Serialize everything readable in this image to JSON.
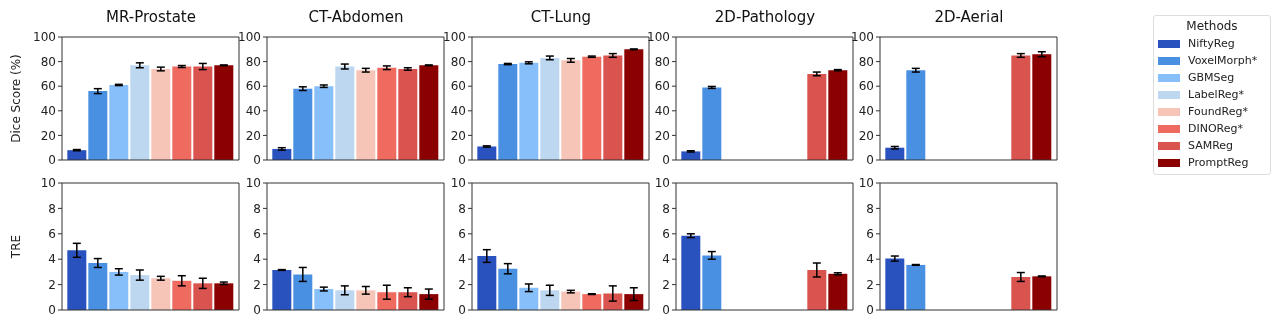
{
  "chart_data": [
    {
      "type": "bar",
      "title": "MR-Prostate",
      "ylabel": "Dice Score (%)",
      "categories": [
        null
      ],
      "ylim": [
        0,
        100
      ],
      "yticks": [
        0,
        20,
        40,
        60,
        80,
        100
      ],
      "grid": false,
      "legend": false,
      "series": [
        {
          "color": "#2a52be",
          "values": [
            8
          ],
          "errors": [
            0.5
          ]
        },
        {
          "color": "#4a90e2",
          "values": [
            56
          ],
          "errors": [
            2
          ]
        },
        {
          "color": "#87bffa",
          "values": [
            61
          ],
          "errors": [
            0.5
          ]
        },
        {
          "color": "#bcd7ef",
          "values": [
            77
          ],
          "errors": [
            2
          ]
        },
        {
          "color": "#f7c4b8",
          "values": [
            74
          ],
          "errors": [
            1.5
          ]
        },
        {
          "color": "#ef6b5f",
          "values": [
            76
          ],
          "errors": [
            0.8
          ]
        },
        {
          "color": "#d9534f",
          "values": [
            76
          ],
          "errors": [
            2.5
          ]
        },
        {
          "color": "#8b0000",
          "values": [
            77
          ],
          "errors": [
            0.3
          ]
        }
      ]
    },
    {
      "type": "bar",
      "title": "CT-Abdomen",
      "categories": [
        null
      ],
      "ylim": [
        0,
        100
      ],
      "yticks": [
        0,
        20,
        40,
        60,
        80,
        100
      ],
      "grid": false,
      "legend": false,
      "series": [
        {
          "color": "#2a52be",
          "values": [
            9
          ],
          "errors": [
            1
          ]
        },
        {
          "color": "#4a90e2",
          "values": [
            58
          ],
          "errors": [
            1.5
          ]
        },
        {
          "color": "#87bffa",
          "values": [
            60
          ],
          "errors": [
            1
          ]
        },
        {
          "color": "#bcd7ef",
          "values": [
            76
          ],
          "errors": [
            2
          ]
        },
        {
          "color": "#f7c4b8",
          "values": [
            73
          ],
          "errors": [
            1.5
          ]
        },
        {
          "color": "#ef6b5f",
          "values": [
            75
          ],
          "errors": [
            1.5
          ]
        },
        {
          "color": "#d9534f",
          "values": [
            74
          ],
          "errors": [
            1
          ]
        },
        {
          "color": "#8b0000",
          "values": [
            77
          ],
          "errors": [
            0.3
          ]
        }
      ]
    },
    {
      "type": "bar",
      "title": "CT-Lung",
      "categories": [
        null
      ],
      "ylim": [
        0,
        100
      ],
      "yticks": [
        0,
        20,
        40,
        60,
        80,
        100
      ],
      "grid": false,
      "legend": false,
      "series": [
        {
          "color": "#2a52be",
          "values": [
            11
          ],
          "errors": [
            0.5
          ]
        },
        {
          "color": "#4a90e2",
          "values": [
            78
          ],
          "errors": [
            0.5
          ]
        },
        {
          "color": "#87bffa",
          "values": [
            79
          ],
          "errors": [
            0.8
          ]
        },
        {
          "color": "#bcd7ef",
          "values": [
            83
          ],
          "errors": [
            1.5
          ]
        },
        {
          "color": "#f7c4b8",
          "values": [
            81
          ],
          "errors": [
            1.5
          ]
        },
        {
          "color": "#ef6b5f",
          "values": [
            84
          ],
          "errors": [
            0.5
          ]
        },
        {
          "color": "#d9534f",
          "values": [
            85
          ],
          "errors": [
            1.5
          ]
        },
        {
          "color": "#8b0000",
          "values": [
            90
          ],
          "errors": [
            0.3
          ]
        }
      ]
    },
    {
      "type": "bar",
      "title": "2D-Pathology",
      "categories": [
        null
      ],
      "ylim": [
        0,
        100
      ],
      "yticks": [
        0,
        20,
        40,
        60,
        80,
        100
      ],
      "grid": false,
      "legend": false,
      "series": [
        {
          "color": "#2a52be",
          "values": [
            7
          ],
          "errors": [
            0.5
          ]
        },
        {
          "color": "#4a90e2",
          "values": [
            59
          ],
          "errors": [
            0.8
          ]
        },
        {
          "color": "#87bffa",
          "values": [
            null
          ],
          "errors": [
            null
          ]
        },
        {
          "color": "#bcd7ef",
          "values": [
            null
          ],
          "errors": [
            null
          ]
        },
        {
          "color": "#f7c4b8",
          "values": [
            null
          ],
          "errors": [
            null
          ]
        },
        {
          "color": "#ef6b5f",
          "values": [
            null
          ],
          "errors": [
            null
          ]
        },
        {
          "color": "#d9534f",
          "values": [
            70
          ],
          "errors": [
            1.5
          ]
        },
        {
          "color": "#8b0000",
          "values": [
            73
          ],
          "errors": [
            0.5
          ]
        }
      ]
    },
    {
      "type": "bar",
      "title": "2D-Aerial",
      "categories": [
        null
      ],
      "ylim": [
        0,
        100
      ],
      "yticks": [
        0,
        20,
        40,
        60,
        80,
        100
      ],
      "grid": false,
      "legend": "right",
      "legend_title": "Methods",
      "series": [
        {
          "name": "NiftyReg",
          "color": "#2a52be",
          "values": [
            10
          ],
          "errors": [
            1
          ]
        },
        {
          "name": "VoxelMorph*",
          "color": "#4a90e2",
          "values": [
            73
          ],
          "errors": [
            1.5
          ]
        },
        {
          "name": "GBMSeg",
          "color": "#87bffa",
          "values": [
            null
          ],
          "errors": [
            null
          ]
        },
        {
          "name": "LabelReg*",
          "color": "#bcd7ef",
          "values": [
            null
          ],
          "errors": [
            null
          ]
        },
        {
          "name": "FoundReg*",
          "color": "#f7c4b8",
          "values": [
            null
          ],
          "errors": [
            null
          ]
        },
        {
          "name": "DINOReg*",
          "color": "#ef6b5f",
          "values": [
            null
          ],
          "errors": [
            null
          ]
        },
        {
          "name": "SAMReg",
          "color": "#d9534f",
          "values": [
            85
          ],
          "errors": [
            1.5
          ]
        },
        {
          "name": "PromptReg",
          "color": "#8b0000",
          "values": [
            86
          ],
          "errors": [
            2
          ]
        }
      ]
    },
    {
      "type": "bar",
      "ylabel": "TRE",
      "categories": [
        null
      ],
      "ylim": [
        0,
        10
      ],
      "yticks": [
        0,
        2,
        4,
        6,
        8,
        10
      ],
      "grid": false,
      "legend": false,
      "series": [
        {
          "color": "#2a52be",
          "values": [
            4.7
          ],
          "errors": [
            0.55
          ]
        },
        {
          "color": "#4a90e2",
          "values": [
            3.7
          ],
          "errors": [
            0.35
          ]
        },
        {
          "color": "#87bffa",
          "values": [
            3.0
          ],
          "errors": [
            0.25
          ]
        },
        {
          "color": "#bcd7ef",
          "values": [
            2.75
          ],
          "errors": [
            0.4
          ]
        },
        {
          "color": "#f7c4b8",
          "values": [
            2.5
          ],
          "errors": [
            0.15
          ]
        },
        {
          "color": "#ef6b5f",
          "values": [
            2.3
          ],
          "errors": [
            0.4
          ]
        },
        {
          "color": "#d9534f",
          "values": [
            2.1
          ],
          "errors": [
            0.4
          ]
        },
        {
          "color": "#8b0000",
          "values": [
            2.1
          ],
          "errors": [
            0.1
          ]
        }
      ]
    },
    {
      "type": "bar",
      "categories": [
        null
      ],
      "ylim": [
        0,
        10
      ],
      "yticks": [
        0,
        2,
        4,
        6,
        8,
        10
      ],
      "grid": false,
      "legend": false,
      "series": [
        {
          "color": "#2a52be",
          "values": [
            3.15
          ],
          "errors": [
            0.03
          ]
        },
        {
          "color": "#4a90e2",
          "values": [
            2.8
          ],
          "errors": [
            0.55
          ]
        },
        {
          "color": "#87bffa",
          "values": [
            1.65
          ],
          "errors": [
            0.15
          ]
        },
        {
          "color": "#bcd7ef",
          "values": [
            1.55
          ],
          "errors": [
            0.35
          ]
        },
        {
          "color": "#f7c4b8",
          "values": [
            1.55
          ],
          "errors": [
            0.3
          ]
        },
        {
          "color": "#ef6b5f",
          "values": [
            1.4
          ],
          "errors": [
            0.55
          ]
        },
        {
          "color": "#d9534f",
          "values": [
            1.4
          ],
          "errors": [
            0.35
          ]
        },
        {
          "color": "#8b0000",
          "values": [
            1.25
          ],
          "errors": [
            0.4
          ]
        }
      ]
    },
    {
      "type": "bar",
      "categories": [
        null
      ],
      "ylim": [
        0,
        10
      ],
      "yticks": [
        0,
        2,
        4,
        6,
        8,
        10
      ],
      "grid": false,
      "legend": false,
      "series": [
        {
          "color": "#2a52be",
          "values": [
            4.25
          ],
          "errors": [
            0.5
          ]
        },
        {
          "color": "#4a90e2",
          "values": [
            3.25
          ],
          "errors": [
            0.4
          ]
        },
        {
          "color": "#87bffa",
          "values": [
            1.75
          ],
          "errors": [
            0.3
          ]
        },
        {
          "color": "#bcd7ef",
          "values": [
            1.55
          ],
          "errors": [
            0.4
          ]
        },
        {
          "color": "#f7c4b8",
          "values": [
            1.45
          ],
          "errors": [
            0.1
          ]
        },
        {
          "color": "#ef6b5f",
          "values": [
            1.25
          ],
          "errors": [
            0.03
          ]
        },
        {
          "color": "#d9534f",
          "values": [
            1.3
          ],
          "errors": [
            0.6
          ]
        },
        {
          "color": "#8b0000",
          "values": [
            1.25
          ],
          "errors": [
            0.5
          ]
        }
      ]
    },
    {
      "type": "bar",
      "categories": [
        null
      ],
      "ylim": [
        0,
        10
      ],
      "yticks": [
        0,
        2,
        4,
        6,
        8,
        10
      ],
      "grid": false,
      "legend": false,
      "series": [
        {
          "color": "#2a52be",
          "values": [
            5.85
          ],
          "errors": [
            0.15
          ]
        },
        {
          "color": "#4a90e2",
          "values": [
            4.3
          ],
          "errors": [
            0.3
          ]
        },
        {
          "color": "#87bffa",
          "values": [
            null
          ],
          "errors": [
            null
          ]
        },
        {
          "color": "#bcd7ef",
          "values": [
            null
          ],
          "errors": [
            null
          ]
        },
        {
          "color": "#f7c4b8",
          "values": [
            null
          ],
          "errors": [
            null
          ]
        },
        {
          "color": "#ef6b5f",
          "values": [
            null
          ],
          "errors": [
            null
          ]
        },
        {
          "color": "#d9534f",
          "values": [
            3.15
          ],
          "errors": [
            0.55
          ]
        },
        {
          "color": "#8b0000",
          "values": [
            2.85
          ],
          "errors": [
            0.08
          ]
        }
      ]
    },
    {
      "type": "bar",
      "categories": [
        null
      ],
      "ylim": [
        0,
        10
      ],
      "yticks": [
        0,
        2,
        4,
        6,
        8,
        10
      ],
      "grid": false,
      "legend": false,
      "series": [
        {
          "color": "#2a52be",
          "values": [
            4.05
          ],
          "errors": [
            0.2
          ]
        },
        {
          "color": "#4a90e2",
          "values": [
            3.55
          ],
          "errors": [
            0.03
          ]
        },
        {
          "color": "#87bffa",
          "values": [
            null
          ],
          "errors": [
            null
          ]
        },
        {
          "color": "#bcd7ef",
          "values": [
            null
          ],
          "errors": [
            null
          ]
        },
        {
          "color": "#f7c4b8",
          "values": [
            null
          ],
          "errors": [
            null
          ]
        },
        {
          "color": "#ef6b5f",
          "values": [
            null
          ],
          "errors": [
            null
          ]
        },
        {
          "color": "#d9534f",
          "values": [
            2.6
          ],
          "errors": [
            0.35
          ]
        },
        {
          "color": "#8b0000",
          "values": [
            2.65
          ],
          "errors": [
            0.03
          ]
        }
      ]
    }
  ]
}
